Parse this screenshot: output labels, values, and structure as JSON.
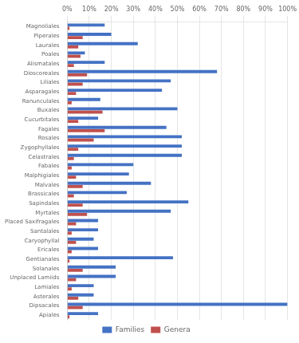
{
  "chart_data": {
    "type": "bar",
    "orientation": "horizontal",
    "categories": [
      "Magnoliales",
      "Piperales",
      "Laurales",
      "Poales",
      "Alismatales",
      "Dioscoreales",
      "Liliales",
      "Asparagales",
      "Ranunculales",
      "Buxales",
      "Cucurbitales",
      "Fagales",
      "Rosales",
      "Zygophyllales",
      "Celastrales",
      "Fabales",
      "Malphigiales",
      "Malvales",
      "Brassicales",
      "Sapindales",
      "Myrtales",
      "Placed Saxifragales",
      "Santalales",
      "Caryophyllal",
      "Ericales",
      "Gentianales",
      "Solanales",
      "Unplaced Lamiids",
      "Lamiales",
      "Asterales",
      "Dipsacales",
      "Apiales"
    ],
    "series": [
      {
        "name": "Families",
        "color": "#4472C4",
        "values": [
          17,
          20,
          32,
          8,
          17,
          68,
          47,
          43,
          15,
          50,
          14,
          45,
          52,
          52,
          52,
          30,
          28,
          38,
          27,
          55,
          47,
          14,
          14,
          12,
          14,
          48,
          22,
          22,
          12,
          12,
          100,
          14
        ]
      },
      {
        "name": "Genera",
        "color": "#C0504D",
        "values": [
          1,
          7,
          5,
          6,
          3,
          9,
          7,
          4,
          2,
          16,
          5,
          17,
          12,
          5,
          3,
          2,
          4,
          7,
          3,
          7,
          9,
          4,
          2,
          4,
          2,
          1,
          7,
          4,
          2,
          5,
          7,
          1
        ]
      }
    ],
    "xlim": [
      0,
      100
    ],
    "xticks": [
      {
        "value": 0,
        "label": "0%"
      },
      {
        "value": 10,
        "label": "10%"
      },
      {
        "value": 20,
        "label": "20%"
      },
      {
        "value": 30,
        "label": "30%"
      },
      {
        "value": 40,
        "label": "40%"
      },
      {
        "value": 50,
        "label": "50%"
      },
      {
        "value": 60,
        "label": "60%"
      },
      {
        "value": 70,
        "label": "70%"
      },
      {
        "value": 80,
        "label": "80%"
      },
      {
        "value": 90,
        "label": "90%"
      },
      {
        "value": 100,
        "label": "100%"
      }
    ],
    "grid": true,
    "legend": "bottom"
  }
}
